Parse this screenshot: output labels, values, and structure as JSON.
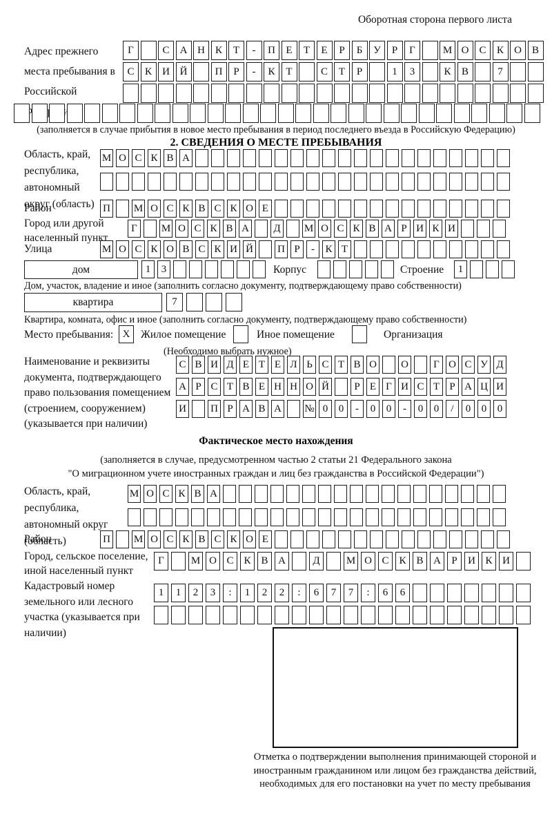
{
  "header": {
    "page_note": "Оборотная сторона первого листа"
  },
  "prev_address": {
    "label": "Адрес прежнего места пребывания в Российской Федерации",
    "r1": [
      "Г",
      "",
      "С",
      "А",
      "Н",
      "К",
      "Т",
      "-",
      "П",
      "Е",
      "Т",
      "Е",
      "Р",
      "Б",
      "У",
      "Р",
      "Г",
      "",
      "М",
      "О",
      "С",
      "К",
      "О",
      "В"
    ],
    "r2": [
      "С",
      "К",
      "И",
      "Й",
      "",
      "П",
      "Р",
      "-",
      "К",
      "Т",
      "",
      "С",
      "Т",
      "Р",
      "",
      "1",
      "3",
      "",
      "К",
      "В",
      "",
      "7",
      "",
      ""
    ],
    "r3": [
      "",
      "",
      "",
      "",
      "",
      "",
      "",
      "",
      "",
      "",
      "",
      "",
      "",
      "",
      "",
      "",
      "",
      "",
      "",
      "",
      "",
      "",
      "",
      ""
    ],
    "r4": [
      "",
      "",
      "",
      "",
      "",
      "",
      "",
      "",
      "",
      "",
      "",
      "",
      "",
      "",
      "",
      "",
      "",
      "",
      "",
      "",
      "",
      "",
      "",
      "",
      "",
      "",
      "",
      "",
      "",
      ""
    ],
    "note": "(заполняется в случае прибытия в новое место пребывания в период последнего въезда в Российскую Федерацию)"
  },
  "section2": {
    "title": "2. СВЕДЕНИЯ О МЕСТЕ ПРЕБЫВАНИЯ",
    "region": {
      "label": "Область, край, республика, автономный округ (область)",
      "r1": [
        "М",
        "О",
        "С",
        "К",
        "В",
        "А",
        "",
        "",
        "",
        "",
        "",
        "",
        "",
        "",
        "",
        "",
        "",
        "",
        "",
        "",
        "",
        "",
        "",
        "",
        "",
        ""
      ],
      "r2": [
        "",
        "",
        "",
        "",
        "",
        "",
        "",
        "",
        "",
        "",
        "",
        "",
        "",
        "",
        "",
        "",
        "",
        "",
        "",
        "",
        "",
        "",
        "",
        "",
        "",
        ""
      ]
    },
    "district": {
      "label": "Район",
      "r1": [
        "П",
        "",
        "М",
        "О",
        "С",
        "К",
        "В",
        "С",
        "К",
        "О",
        "Е",
        "",
        "",
        "",
        "",
        "",
        "",
        "",
        "",
        "",
        "",
        "",
        "",
        "",
        "",
        ""
      ]
    },
    "city": {
      "label": "Город или другой населенный пункт",
      "r1": [
        "Г",
        "",
        "М",
        "О",
        "С",
        "К",
        "В",
        "А",
        "",
        "Д",
        "",
        "М",
        "О",
        "С",
        "К",
        "В",
        "А",
        "Р",
        "И",
        "К",
        "И",
        "",
        "",
        ""
      ]
    },
    "street": {
      "label": "Улица",
      "r1": [
        "М",
        "О",
        "С",
        "К",
        "О",
        "В",
        "С",
        "К",
        "И",
        "Й",
        "",
        "П",
        "Р",
        "-",
        "К",
        "Т",
        "",
        "",
        "",
        "",
        "",
        "",
        "",
        "",
        "",
        ""
      ]
    },
    "house": {
      "box_label": "дом",
      "number": [
        "1",
        "3",
        "",
        "",
        "",
        "",
        "",
        ""
      ],
      "korpus_label": "Корпус",
      "korpus": [
        "",
        "",
        "",
        "",
        ""
      ],
      "stroenie_label": "Строение",
      "stroenie": [
        "1",
        "",
        "",
        ""
      ],
      "note": "Дом, участок, владение и иное (заполнить согласно документу, подтверждающему право собственности)"
    },
    "apartment": {
      "box_label": "квартира",
      "cells": [
        "7",
        "",
        "",
        ""
      ],
      "note": "Квартира, комната, офис и иное (заполнить согласно документу, подтверждающему право собственности)"
    },
    "stay_type": {
      "label": "Место пребывания:",
      "options": [
        {
          "label": "Жилое помещение",
          "mark": "X"
        },
        {
          "label": "Иное помещение",
          "mark": ""
        },
        {
          "label": "Организация",
          "mark": ""
        }
      ],
      "note": "(Необходимо выбрать нужное)"
    },
    "document": {
      "label": "Наименование и реквизиты документа, подтверждающего право пользования помещением (строением, сооружением) (указывается при наличии)",
      "r1": [
        "С",
        "В",
        "И",
        "Д",
        "Е",
        "Т",
        "Е",
        "Л",
        "Ь",
        "С",
        "Т",
        "В",
        "О",
        "",
        "О",
        "",
        "Г",
        "О",
        "С",
        "У",
        "Д"
      ],
      "r2": [
        "А",
        "Р",
        "С",
        "Т",
        "В",
        "Е",
        "Н",
        "Н",
        "О",
        "Й",
        "",
        "Р",
        "Е",
        "Г",
        "И",
        "С",
        "Т",
        "Р",
        "А",
        "Ц",
        "И"
      ],
      "r3": [
        "И",
        "",
        "П",
        "Р",
        "А",
        "В",
        "А",
        "",
        "№",
        "0",
        "0",
        "-",
        "0",
        "0",
        "-",
        "0",
        "0",
        "/",
        "0",
        "0",
        "0"
      ]
    }
  },
  "section3": {
    "title": "Фактическое место нахождения",
    "note_line1": "(заполняется в случае, предусмотренном частью 2 статьи 21 Федерального закона",
    "note_line2": "\"О миграционном учете иностранных граждан и лиц без гражданства в Российской Федерации\")",
    "region": {
      "label": "Область, край, республика, автономный округ (область)",
      "r1": [
        "М",
        "О",
        "С",
        "К",
        "В",
        "А",
        "",
        "",
        "",
        "",
        "",
        "",
        "",
        "",
        "",
        "",
        "",
        "",
        "",
        "",
        "",
        "",
        "",
        ""
      ],
      "r2": [
        "",
        "",
        "",
        "",
        "",
        "",
        "",
        "",
        "",
        "",
        "",
        "",
        "",
        "",
        "",
        "",
        "",
        "",
        "",
        "",
        "",
        "",
        "",
        ""
      ]
    },
    "district": {
      "label": "Район",
      "r1": [
        "П",
        "",
        "М",
        "О",
        "С",
        "К",
        "В",
        "С",
        "К",
        "О",
        "Е",
        "",
        "",
        "",
        "",
        "",
        "",
        "",
        "",
        "",
        "",
        "",
        "",
        "",
        "",
        ""
      ]
    },
    "city": {
      "label": "Город, сельское поселение, иной населенный пункт",
      "r1": [
        "Г",
        "",
        "М",
        "О",
        "С",
        "К",
        "В",
        "А",
        "",
        "Д",
        "",
        "М",
        "О",
        "С",
        "К",
        "В",
        "А",
        "Р",
        "И",
        "К",
        "И",
        ""
      ]
    },
    "cadastre": {
      "label": "Кадастровый номер земельного или лесного участка (указывается при наличии)",
      "r1": [
        "1",
        "1",
        "2",
        "3",
        ":",
        "1",
        "2",
        "2",
        ":",
        "6",
        "7",
        "7",
        ":",
        "6",
        "6",
        "",
        "",
        "",
        "",
        "",
        "",
        ""
      ],
      "r2": [
        "",
        "",
        "",
        "",
        "",
        "",
        "",
        "",
        "",
        "",
        "",
        "",
        "",
        "",
        "",
        "",
        "",
        "",
        "",
        "",
        "",
        ""
      ]
    },
    "stamp_caption": "Отметка о подтверждении выполнения принимающей стороной и иностранным гражданином или лицом без гражданства действий, необходимых для его постановки на учет по месту пребывания"
  }
}
